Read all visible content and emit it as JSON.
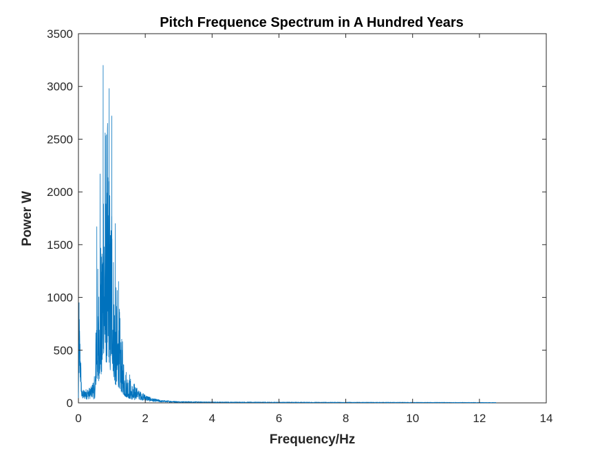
{
  "chart_data": {
    "type": "line",
    "title": "Pitch Frequence Spectrum in A Hundred Years",
    "xlabel": "Frequency/Hz",
    "ylabel": "Power W",
    "xlim": [
      0,
      14
    ],
    "ylim": [
      0,
      3500
    ],
    "xticks": [
      0,
      2,
      4,
      6,
      8,
      10,
      12,
      14
    ],
    "yticks": [
      0,
      500,
      1000,
      1500,
      2000,
      2500,
      3000,
      3500
    ],
    "grid": false,
    "legend": "none",
    "series": [
      {
        "color": "#0072bd",
        "x_range": [
          0,
          12.5
        ],
        "envelope": {
          "x": [
            0,
            0.02,
            0.1,
            0.2,
            0.3,
            0.4,
            0.5,
            0.55,
            0.6,
            0.65,
            0.7,
            0.75,
            0.8,
            0.85,
            0.9,
            0.95,
            1.0,
            1.05,
            1.1,
            1.15,
            1.2,
            1.3,
            1.4,
            1.5,
            1.6,
            1.8,
            2.0,
            2.2,
            2.5,
            3.0,
            4.0,
            6.0,
            8.0,
            10.0,
            12.0,
            12.5
          ],
          "y": [
            60,
            950,
            120,
            130,
            140,
            160,
            300,
            1670,
            1100,
            2170,
            1450,
            3200,
            2560,
            2550,
            2980,
            1900,
            2720,
            1700,
            1100,
            1150,
            1000,
            650,
            400,
            300,
            220,
            120,
            80,
            45,
            25,
            15,
            10,
            8,
            7,
            6,
            5,
            4
          ]
        },
        "peaks": [
          {
            "x": 0.02,
            "y": 950
          },
          {
            "x": 0.55,
            "y": 1670
          },
          {
            "x": 0.65,
            "y": 2170
          },
          {
            "x": 0.74,
            "y": 3200
          },
          {
            "x": 0.8,
            "y": 2560
          },
          {
            "x": 0.92,
            "y": 2980
          },
          {
            "x": 1.0,
            "y": 2720
          },
          {
            "x": 1.1,
            "y": 1700
          },
          {
            "x": 1.2,
            "y": 1150
          }
        ]
      }
    ]
  }
}
